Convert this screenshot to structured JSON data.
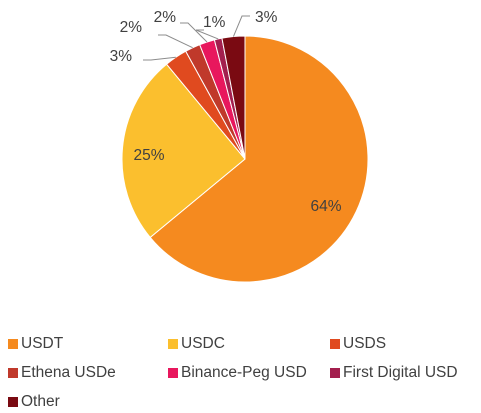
{
  "chart_data": {
    "type": "pie",
    "title": "",
    "categories": [
      "USDT",
      "USDC",
      "USDS",
      "Ethena USDe",
      "Binance-Peg USD",
      "First Digital USD",
      "Other"
    ],
    "values": [
      64,
      25,
      3,
      2,
      2,
      1,
      3
    ],
    "colors": [
      "#F58A1F",
      "#FBBF2E",
      "#E04A1F",
      "#C0392B",
      "#E8175D",
      "#A31F4E",
      "#7A0A12"
    ],
    "data_labels": [
      "64%",
      "25%",
      "3%",
      "2%",
      "2%",
      "1%",
      "3%"
    ],
    "legend_position": "bottom"
  }
}
